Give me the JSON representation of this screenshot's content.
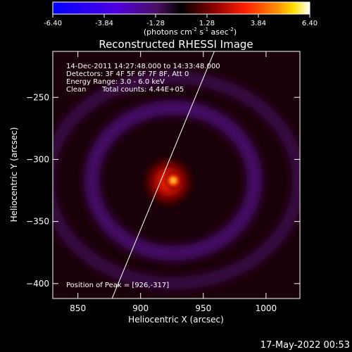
{
  "colorbar": {
    "ticks": [
      "-6.40",
      "-3.84",
      "-1.28",
      "1.28",
      "3.84",
      "6.40"
    ],
    "tick_values": [
      -6.4,
      -3.84,
      -1.28,
      1.28,
      3.84,
      6.4
    ],
    "range": [
      -6.4,
      6.4
    ],
    "units_main": "(photons cm",
    "units_exp1": "-2",
    "units_mid": " s",
    "units_exp2": "-1",
    "units_mid2": " asec",
    "units_exp3": "-2",
    "units_end": ")",
    "stops": [
      {
        "value": -6.4,
        "color": "#0000ff"
      },
      {
        "value": -3.2,
        "color": "#5000e0"
      },
      {
        "value": -1.2,
        "color": "#4a1060"
      },
      {
        "value": 0.0,
        "color": "#000000"
      },
      {
        "value": 1.6,
        "color": "#8a0000"
      },
      {
        "value": 3.2,
        "color": "#ff2000"
      },
      {
        "value": 4.8,
        "color": "#ff9000"
      },
      {
        "value": 5.6,
        "color": "#ffe000"
      },
      {
        "value": 6.4,
        "color": "#ffffff"
      }
    ]
  },
  "chart_data": {
    "type": "heatmap",
    "title": "Reconstructed RHESSI Image",
    "xlabel": "Heliocentric X (arcsec)",
    "ylabel": "Heliocentric Y (arcsec)",
    "xlim": [
      830,
      1027
    ],
    "ylim": [
      -412,
      -213
    ],
    "xticks": [
      850,
      900,
      950,
      1000
    ],
    "yticks": [
      -250,
      -300,
      -350,
      -400
    ],
    "xtick_labels": [
      "850",
      "900",
      "950",
      "1000"
    ],
    "ytick_labels": [
      "−250",
      "−300",
      "−350",
      "−400"
    ],
    "annotations": [
      "14-Dec-2011 14:27:48.000 to 14:33:48.000",
      "Detectors: 3F 4F 5F 6F 7F 8F, Att 0",
      "Energy Range: 3.0 - 6.0 keV",
      "Clean",
      "Total counts: 4.44E+05"
    ],
    "peak_label": "Position of Peak = [926,-317]",
    "peak": {
      "x": 926,
      "y": -317
    },
    "limb_line": [
      {
        "x": 876,
        "y": -415
      },
      {
        "x": 960,
        "y": -210
      }
    ],
    "sources": [
      {
        "x": 926,
        "y": -317,
        "sigma": 4,
        "amplitude": 6.4
      },
      {
        "x": 922,
        "y": -318,
        "sigma": 12,
        "amplitude": 3.4
      }
    ],
    "rings": [
      {
        "x": 926,
        "y": -317,
        "rx": 65,
        "ry": 58,
        "width": 12,
        "amplitude": -1.5
      },
      {
        "x": 926,
        "y": -317,
        "rx": 100,
        "ry": 82,
        "width": 10,
        "amplitude": -1.0
      }
    ]
  },
  "footer": {
    "date": "17-May-2022 00:53"
  }
}
